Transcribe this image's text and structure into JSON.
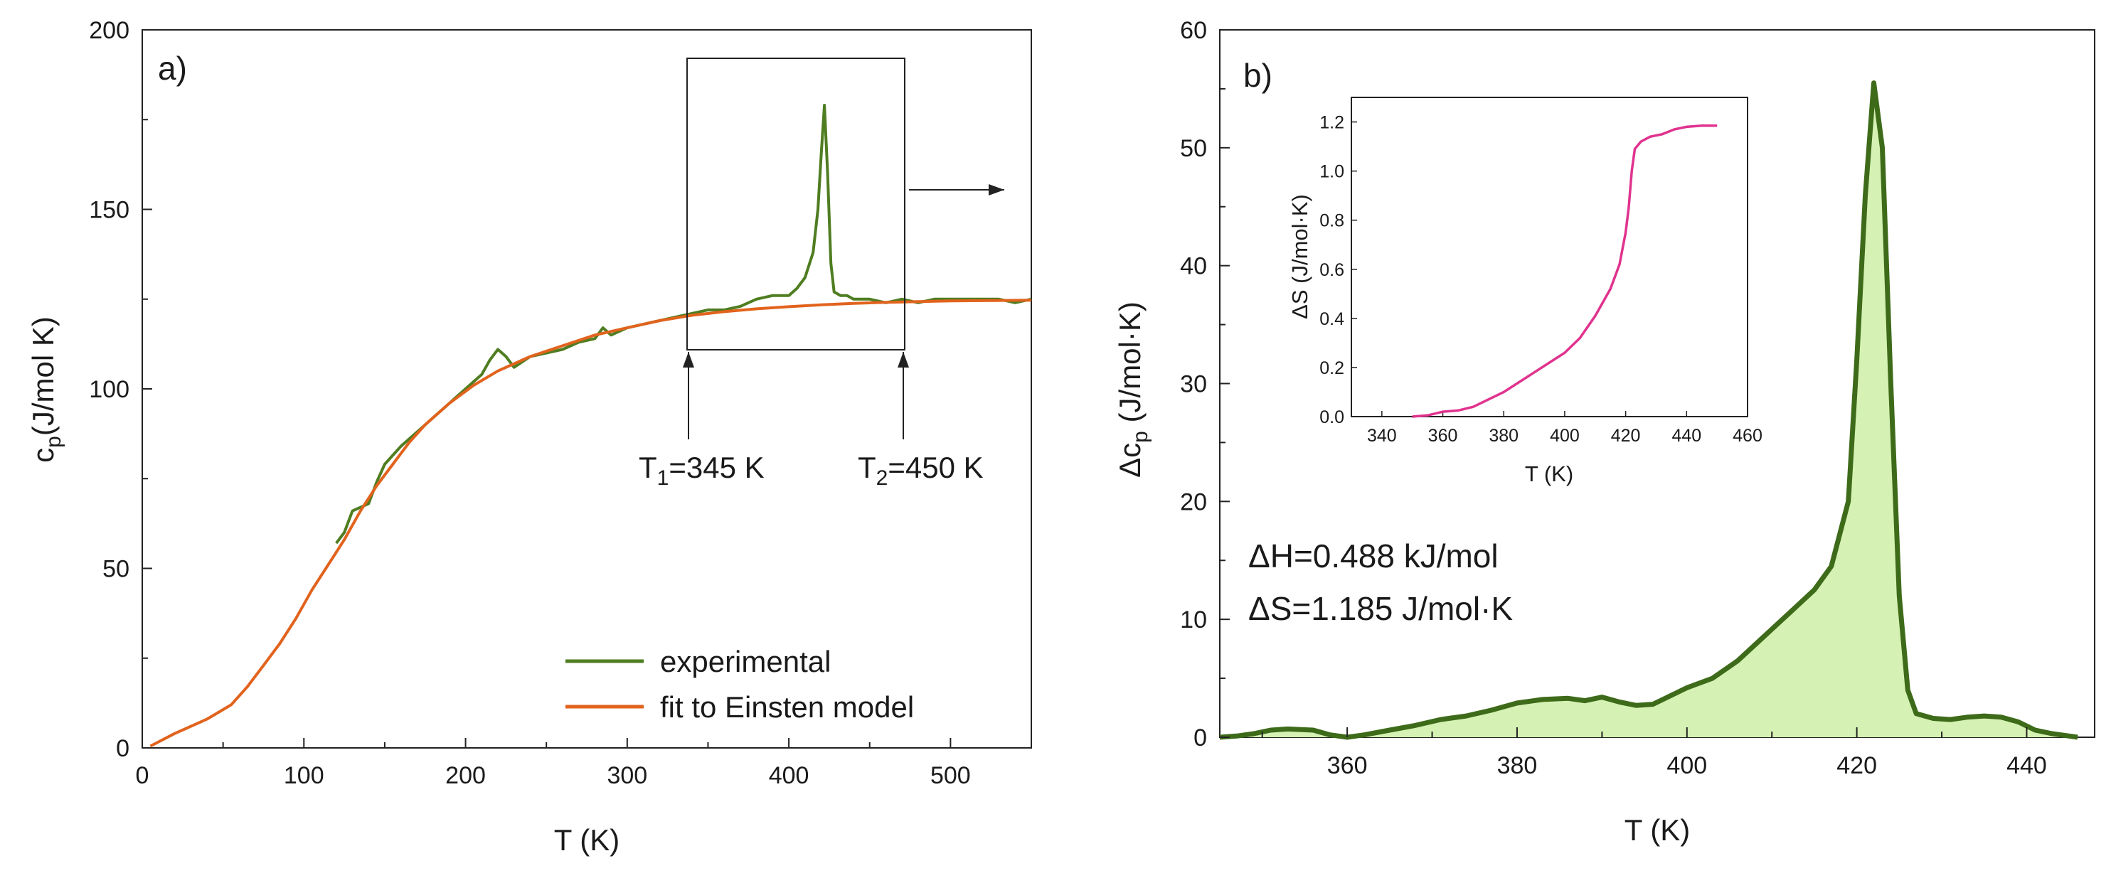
{
  "chart_data": [
    {
      "panel_label": "a)",
      "type": "line",
      "xlabel": "T (K)",
      "ylabel": {
        "main": "c",
        "sub": "p",
        "rest": "(J/mol K)"
      },
      "xlim": [
        0,
        550
      ],
      "ylim": [
        0,
        200
      ],
      "xticks": [
        "0",
        "100",
        "200",
        "300",
        "400",
        "500"
      ],
      "yticks": [
        "0",
        "50",
        "100",
        "150",
        "200"
      ],
      "grid": false,
      "legend_position": "bottom-right",
      "series": [
        {
          "name": "experimental",
          "color": "#4f7d21",
          "points": [
            [
              120,
              57
            ],
            [
              125,
              60
            ],
            [
              130,
              66
            ],
            [
              135,
              67
            ],
            [
              140,
              68
            ],
            [
              145,
              74
            ],
            [
              150,
              79
            ],
            [
              160,
              84
            ],
            [
              170,
              88
            ],
            [
              180,
              92
            ],
            [
              190,
              96
            ],
            [
              200,
              100
            ],
            [
              210,
              104
            ],
            [
              215,
              108
            ],
            [
              220,
              111
            ],
            [
              225,
              109
            ],
            [
              230,
              106
            ],
            [
              240,
              109
            ],
            [
              250,
              110
            ],
            [
              260,
              111
            ],
            [
              270,
              113
            ],
            [
              280,
              114
            ],
            [
              285,
              117
            ],
            [
              290,
              115
            ],
            [
              300,
              117
            ],
            [
              310,
              118
            ],
            [
              320,
              119
            ],
            [
              330,
              120
            ],
            [
              340,
              121
            ],
            [
              350,
              122
            ],
            [
              360,
              122
            ],
            [
              370,
              123
            ],
            [
              380,
              125
            ],
            [
              390,
              126
            ],
            [
              400,
              126
            ],
            [
              405,
              128
            ],
            [
              410,
              131
            ],
            [
              415,
              138
            ],
            [
              418,
              150
            ],
            [
              420,
              165
            ],
            [
              422,
              179
            ],
            [
              424,
              160
            ],
            [
              426,
              135
            ],
            [
              428,
              127
            ],
            [
              432,
              126
            ],
            [
              436,
              126
            ],
            [
              440,
              125
            ],
            [
              450,
              125
            ],
            [
              460,
              124
            ],
            [
              470,
              125
            ],
            [
              480,
              124
            ],
            [
              490,
              125
            ],
            [
              500,
              125
            ],
            [
              510,
              125
            ],
            [
              520,
              125
            ],
            [
              530,
              125
            ],
            [
              540,
              124
            ],
            [
              550,
              125
            ]
          ]
        },
        {
          "name": "fit to Einsten model",
          "color": "#e1631d",
          "points": [
            [
              5,
              0.5
            ],
            [
              20,
              4
            ],
            [
              40,
              8
            ],
            [
              55,
              12
            ],
            [
              65,
              17
            ],
            [
              75,
              23
            ],
            [
              85,
              29
            ],
            [
              95,
              36
            ],
            [
              105,
              44
            ],
            [
              115,
              51
            ],
            [
              125,
              58
            ],
            [
              135,
              66
            ],
            [
              145,
              73
            ],
            [
              155,
              79
            ],
            [
              165,
              85
            ],
            [
              175,
              90
            ],
            [
              190,
              96
            ],
            [
              205,
              101
            ],
            [
              220,
              105
            ],
            [
              240,
              109
            ],
            [
              260,
              112
            ],
            [
              280,
              115
            ],
            [
              300,
              117
            ],
            [
              320,
              119
            ],
            [
              340,
              120.5
            ],
            [
              360,
              121.5
            ],
            [
              380,
              122.3
            ],
            [
              400,
              122.9
            ],
            [
              420,
              123.4
            ],
            [
              440,
              123.8
            ],
            [
              460,
              124.1
            ],
            [
              480,
              124.3
            ],
            [
              500,
              124.5
            ],
            [
              525,
              124.6
            ],
            [
              550,
              124.7
            ]
          ]
        }
      ],
      "annotations": {
        "box_range_K": [
          345,
          450
        ],
        "t1": {
          "main": "T",
          "sub": "1",
          "rest": "=345 K"
        },
        "t2": {
          "main": "T",
          "sub": "2",
          "rest": "=450 K"
        }
      }
    },
    {
      "panel_label": "b)",
      "type": "area",
      "xlabel": "T (K)",
      "ylabel": {
        "main": "Δc",
        "sub": "p",
        "rest": " (J/mol·K)"
      },
      "xlim": [
        345,
        448
      ],
      "ylim": [
        0,
        60
      ],
      "xticks": [
        "360",
        "380",
        "400",
        "420",
        "440"
      ],
      "yticks": [
        "0",
        "10",
        "20",
        "30",
        "40",
        "50",
        "60"
      ],
      "grid": false,
      "line_color": "#3e6b1a",
      "fill_color": "#d5f2b4",
      "points": [
        [
          345,
          0
        ],
        [
          347,
          0.1
        ],
        [
          349,
          0.3
        ],
        [
          351,
          0.6
        ],
        [
          353,
          0.7
        ],
        [
          356,
          0.6
        ],
        [
          358,
          0.2
        ],
        [
          360,
          0
        ],
        [
          362,
          0.2
        ],
        [
          365,
          0.6
        ],
        [
          368,
          1.0
        ],
        [
          371,
          1.5
        ],
        [
          374,
          1.8
        ],
        [
          377,
          2.3
        ],
        [
          380,
          2.9
        ],
        [
          383,
          3.2
        ],
        [
          386,
          3.3
        ],
        [
          388,
          3.1
        ],
        [
          390,
          3.4
        ],
        [
          392,
          3.0
        ],
        [
          394,
          2.7
        ],
        [
          396,
          2.8
        ],
        [
          398,
          3.5
        ],
        [
          400,
          4.2
        ],
        [
          403,
          5.0
        ],
        [
          406,
          6.5
        ],
        [
          409,
          8.5
        ],
        [
          412,
          10.5
        ],
        [
          415,
          12.5
        ],
        [
          417,
          14.5
        ],
        [
          419,
          20
        ],
        [
          420,
          32
        ],
        [
          421,
          46
        ],
        [
          422,
          55.5
        ],
        [
          423,
          50
        ],
        [
          424,
          30
        ],
        [
          425,
          12
        ],
        [
          426,
          4
        ],
        [
          427,
          2.0
        ],
        [
          429,
          1.6
        ],
        [
          431,
          1.5
        ],
        [
          433,
          1.7
        ],
        [
          435,
          1.8
        ],
        [
          437,
          1.7
        ],
        [
          439,
          1.3
        ],
        [
          441,
          0.6
        ],
        [
          443,
          0.3
        ],
        [
          445,
          0.1
        ],
        [
          446,
          0
        ]
      ],
      "enthalpy_text": "ΔH=0.488 kJ/mol",
      "entropy_text": "ΔS=1.185 J/mol·K",
      "inset": {
        "type": "line",
        "xlabel": "T (K)",
        "ylabel": "ΔS (J/mol·K)",
        "xlim": [
          330,
          460
        ],
        "ylim": [
          0,
          1.3
        ],
        "xticks": [
          "340",
          "360",
          "380",
          "400",
          "420",
          "440",
          "460"
        ],
        "yticks": [
          "0.0",
          "0.2",
          "0.4",
          "0.6",
          "0.8",
          "1.0",
          "1.2"
        ],
        "color": "#e0338e",
        "points": [
          [
            350,
            0
          ],
          [
            355,
            0.005
          ],
          [
            360,
            0.02
          ],
          [
            365,
            0.025
          ],
          [
            370,
            0.04
          ],
          [
            375,
            0.07
          ],
          [
            380,
            0.1
          ],
          [
            385,
            0.14
          ],
          [
            390,
            0.18
          ],
          [
            395,
            0.22
          ],
          [
            400,
            0.26
          ],
          [
            405,
            0.32
          ],
          [
            410,
            0.41
          ],
          [
            415,
            0.52
          ],
          [
            418,
            0.62
          ],
          [
            420,
            0.75
          ],
          [
            421,
            0.85
          ],
          [
            422,
            1.0
          ],
          [
            423,
            1.09
          ],
          [
            425,
            1.12
          ],
          [
            428,
            1.14
          ],
          [
            432,
            1.15
          ],
          [
            436,
            1.17
          ],
          [
            440,
            1.18
          ],
          [
            445,
            1.185
          ],
          [
            450,
            1.185
          ]
        ]
      }
    }
  ]
}
